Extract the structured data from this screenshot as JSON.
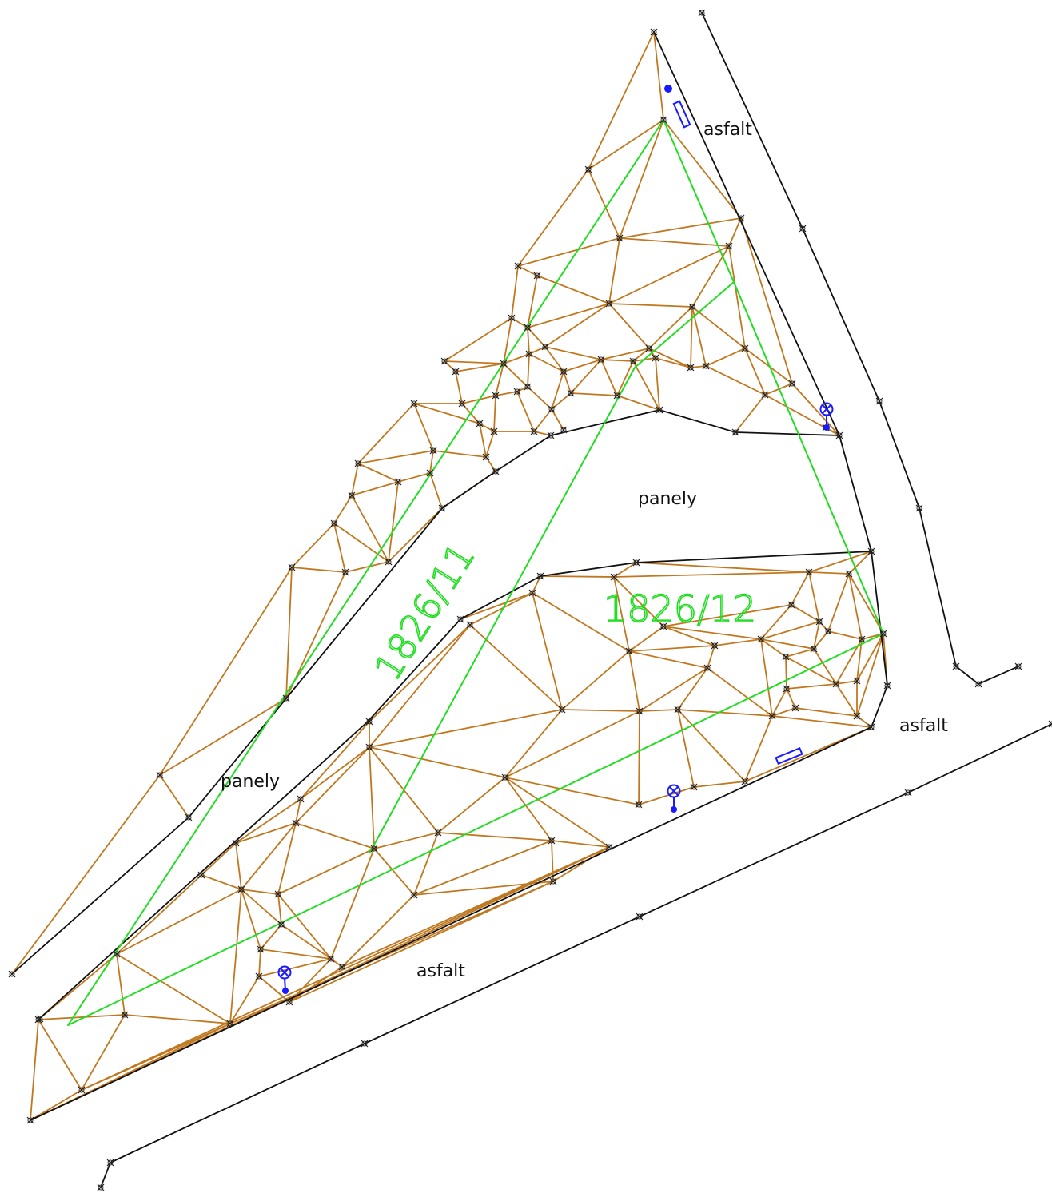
{
  "colors": {
    "background": "#ffffff",
    "survey_lines": "#111111",
    "tin_lines": "#c07820",
    "parcel_boundary": "#22dd22",
    "utility_symbols": "#1a1aff"
  },
  "labels": {
    "asfalt_top": "asfalt",
    "asfalt_right": "asfalt",
    "asfalt_bottom": "asfalt",
    "panely_center": "panely",
    "panely_left": "panely",
    "parcel_11": "1826/11",
    "parcel_12": "1826/12"
  },
  "icons": {
    "survey_point": "survey-point-cross-icon",
    "manhole": "manhole-crossed-circle-icon",
    "inlet": "drain-inlet-rectangle-icon",
    "dot": "utility-dot-icon"
  }
}
